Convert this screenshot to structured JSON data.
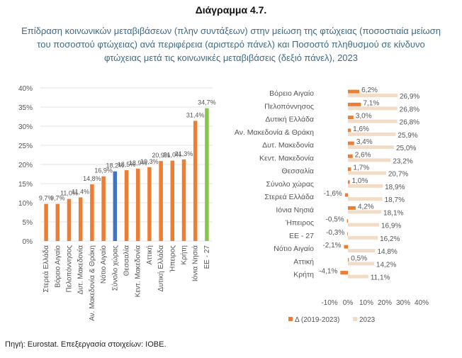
{
  "title": "Διάγραμμα 4.7.",
  "subtitle": "Επίδραση κοινωνικών μεταβιβάσεων (πλην συντάξεων) στην μείωση της φτώχειας (ποσοστιαία μείωση του ποσοστού φτώχειας) ανά περιφέρεια (αριστερό πάνελ) και Ποσοστό πληθυσμού σε κίνδυνο φτώχειας μετά τις κοινωνικές μεταβιβάσεις (δεξιό πάνελ), 2023",
  "source": "Πηγή: Eurostat. Επεξεργασία στοιχείων: ΙΟΒΕ.",
  "colors": {
    "orange": "#ed7d31",
    "blue": "#4472c4",
    "green": "#8ac44c",
    "beige": "#f2dcc6",
    "grid": "#e3e3e3",
    "axis_text": "#555555"
  },
  "chart_data": [
    {
      "type": "bar",
      "ylim": [
        0,
        40
      ],
      "yticks": [
        "0%",
        "5%",
        "10%",
        "15%",
        "20%",
        "25%",
        "30%",
        "35%",
        "40%"
      ],
      "categories": [
        "Στερεά Ελλάδα",
        "Βόρειο Αιγαίο",
        "Πελοπόννησος",
        "Δυτ. Μακεδονία",
        "Αν. Μακεδονία & Θράκη",
        "Νότιο Αιγαίο",
        "Σύνολο χώρας",
        "Θεσσαλία",
        "Κεντ. Μακεδονία",
        "Αττική",
        "Δυτική Ελλάδα",
        "Ήπειρος",
        "Κρήτη",
        "Ιόνια Νησιά",
        "ΕΕ - 27"
      ],
      "values": [
        9.7,
        9.7,
        11.0,
        11.4,
        14.8,
        16.9,
        18.2,
        18.5,
        18.9,
        19.3,
        20.9,
        21.0,
        21.3,
        31.4,
        34.7
      ],
      "value_labels": [
        "9,7%",
        "9,7%",
        "11,0%",
        "11,4%",
        "14,8%",
        "16,9%",
        "18,2%",
        "18,5%",
        "18,9%",
        "19,3%",
        "20,9%",
        "21,0%",
        "21,3%",
        "31,4%",
        "34,7%"
      ],
      "highlight": {
        "Σύνολο χώρας": "blue",
        "ΕΕ - 27": "green"
      }
    },
    {
      "type": "bar",
      "orientation": "horizontal",
      "xlim": [
        -10,
        40
      ],
      "xticks": [
        "-10%",
        "0%",
        "10%",
        "20%",
        "30%",
        "40%"
      ],
      "categories": [
        "Βόρειο Αιγαίο",
        "Πελοπόννησος",
        "Δυτική Ελλάδα",
        "Αν. Μακεδονία & Θράκη",
        "Δυτ. Μακεδονία",
        "Κεντ. Μακεδονία",
        "Θεσσαλία",
        "Σύνολο χώρας",
        "Στερεά Ελλάδα",
        "Ιόνια Νησιά",
        "Ήπειρος",
        "ΕΕ - 27",
        "Νότιο Αιγαίο",
        "Αττική",
        "Κρήτη"
      ],
      "series": [
        {
          "name": "Δ (2019-2023)",
          "color": "orange",
          "values": [
            6.2,
            7.1,
            3.0,
            1.6,
            3.4,
            2.6,
            1.7,
            1.0,
            -1.6,
            4.2,
            -0.5,
            -0.3,
            -2.1,
            0.5,
            -4.1
          ],
          "labels": [
            "6,2%",
            "7,1%",
            "3,0%",
            "1,6%",
            "3,4%",
            "2,6%",
            "1,7%",
            "1,0%",
            "-1,6%",
            "4,2%",
            "-0,5%",
            "-0,3%",
            "-2,1%",
            "0,5%",
            "-4,1%"
          ]
        },
        {
          "name": "2023",
          "color": "beige",
          "values": [
            26.9,
            26.8,
            26.8,
            25.9,
            25.0,
            23.2,
            20.7,
            18.9,
            18.7,
            18.1,
            16.9,
            16.2,
            14.8,
            14.2,
            11.1
          ],
          "labels": [
            "26,9%",
            "26,8%",
            "26,8%",
            "25,9%",
            "25,0%",
            "23,2%",
            "20,7%",
            "18,9%",
            "18,7%",
            "18,1%",
            "16,9%",
            "16,2%",
            "14,8%",
            "14,2%",
            "11,1%"
          ]
        }
      ],
      "legend_position": "bottom"
    }
  ]
}
